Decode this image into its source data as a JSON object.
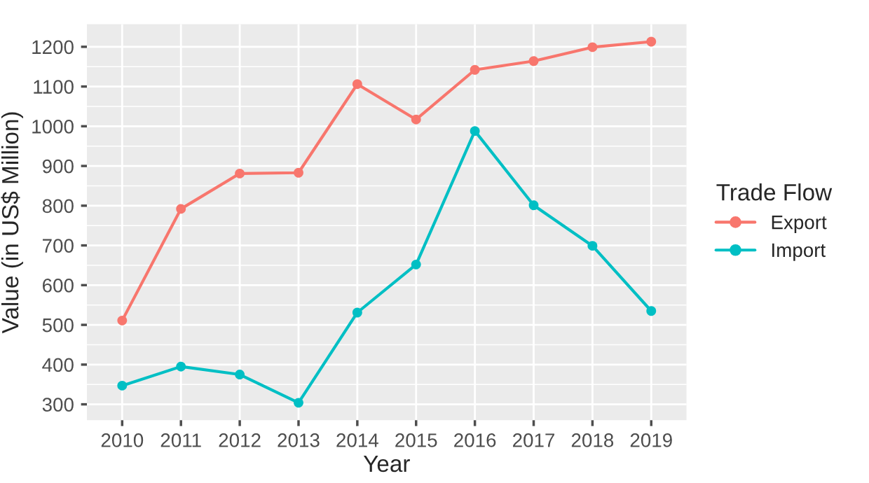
{
  "chart_data": {
    "type": "line",
    "xlabel": "Year",
    "ylabel": "Value (in US$ Million)",
    "legend_title": "Trade Flow",
    "categories": [
      "2010",
      "2011",
      "2012",
      "2013",
      "2014",
      "2015",
      "2016",
      "2017",
      "2018",
      "2019"
    ],
    "series": [
      {
        "name": "Export",
        "color": "#f8766d",
        "values": [
          511,
          792,
          881,
          883,
          1106,
          1017,
          1142,
          1164,
          1199,
          1213
        ]
      },
      {
        "name": "Import",
        "color": "#00bfc4",
        "values": [
          347,
          395,
          375,
          304,
          531,
          652,
          988,
          801,
          699,
          535
        ]
      }
    ],
    "ylim": [
      260,
      1257
    ],
    "yticks": [
      300,
      400,
      500,
      600,
      700,
      800,
      900,
      1000,
      1100,
      1200
    ],
    "grid": true,
    "legend": "right",
    "marker": "circle",
    "line_style": "solid"
  }
}
